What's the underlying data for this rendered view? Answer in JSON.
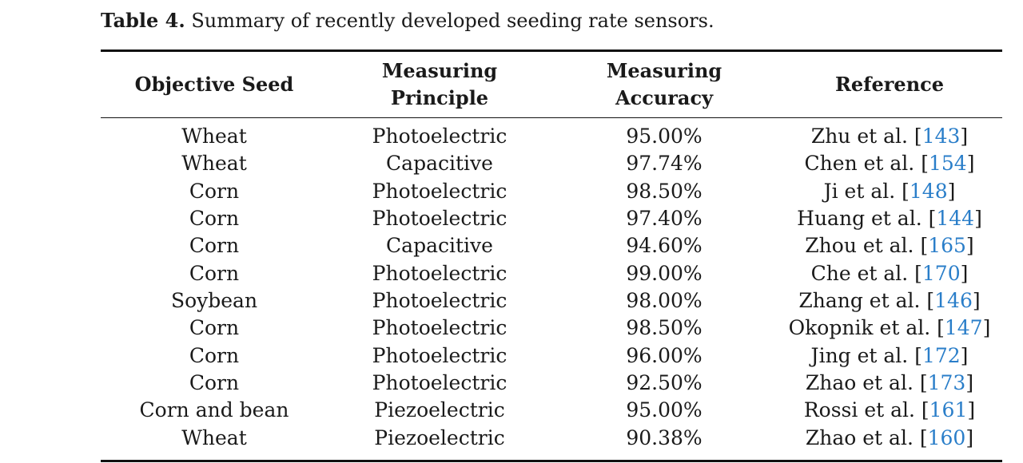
{
  "caption": {
    "label": "Table 4.",
    "text": " Summary of recently developed seeding rate sensors."
  },
  "table": {
    "headers": [
      {
        "line1": "Objective Seed",
        "line2": ""
      },
      {
        "line1": "Measuring",
        "line2": "Principle"
      },
      {
        "line1": "Measuring",
        "line2": "Accuracy"
      },
      {
        "line1": "Reference",
        "line2": ""
      }
    ],
    "rows": [
      {
        "seed": "Wheat",
        "principle": "Photoelectric",
        "accuracy": "95.00%",
        "author": "Zhu et al. [",
        "ref": "143",
        "close": "]"
      },
      {
        "seed": "Wheat",
        "principle": "Capacitive",
        "accuracy": "97.74%",
        "author": "Chen et al. [",
        "ref": "154",
        "close": "]"
      },
      {
        "seed": "Corn",
        "principle": "Photoelectric",
        "accuracy": "98.50%",
        "author": "Ji et al. [",
        "ref": "148",
        "close": "]"
      },
      {
        "seed": "Corn",
        "principle": "Photoelectric",
        "accuracy": "97.40%",
        "author": "Huang et al. [",
        "ref": "144",
        "close": "]"
      },
      {
        "seed": "Corn",
        "principle": "Capacitive",
        "accuracy": "94.60%",
        "author": "Zhou et al. [",
        "ref": "165",
        "close": "]"
      },
      {
        "seed": "Corn",
        "principle": "Photoelectric",
        "accuracy": "99.00%",
        "author": "Che et al. [",
        "ref": "170",
        "close": "]"
      },
      {
        "seed": "Soybean",
        "principle": "Photoelectric",
        "accuracy": "98.00%",
        "author": "Zhang et al. [",
        "ref": "146",
        "close": "]"
      },
      {
        "seed": "Corn",
        "principle": "Photoelectric",
        "accuracy": "98.50%",
        "author": "Okopnik et al. [",
        "ref": "147",
        "close": "]"
      },
      {
        "seed": "Corn",
        "principle": "Photoelectric",
        "accuracy": "96.00%",
        "author": "Jing et al. [",
        "ref": "172",
        "close": "]"
      },
      {
        "seed": "Corn",
        "principle": "Photoelectric",
        "accuracy": "92.50%",
        "author": "Zhao et al. [",
        "ref": "173",
        "close": "]"
      },
      {
        "seed": "Corn and bean",
        "principle": "Piezoelectric",
        "accuracy": "95.00%",
        "author": "Rossi et al. [",
        "ref": "161",
        "close": "]"
      },
      {
        "seed": "Wheat",
        "principle": "Piezoelectric",
        "accuracy": "90.38%",
        "author": "Zhao et al. [",
        "ref": "160",
        "close": "]"
      }
    ]
  },
  "colors": {
    "link": "#2a7ec9",
    "text": "#1a1a1a",
    "rule": "#111111"
  }
}
